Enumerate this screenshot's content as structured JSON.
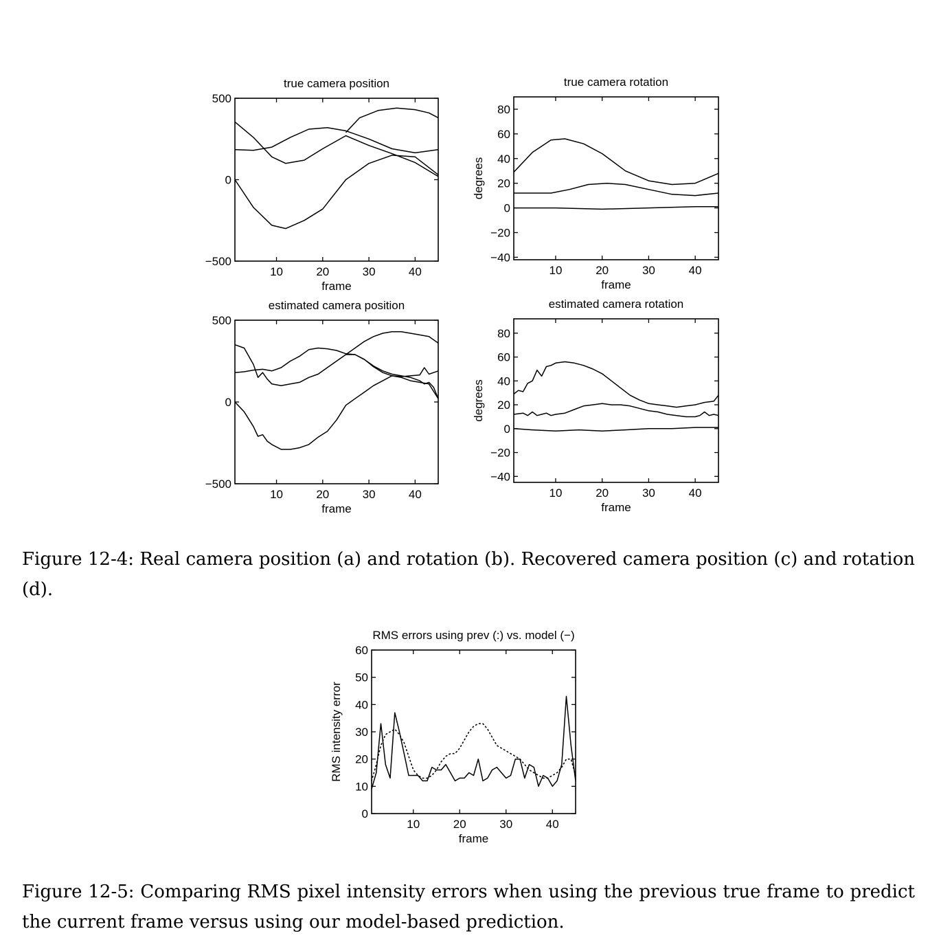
{
  "chart_data": [
    {
      "id": "a",
      "type": "line",
      "title": "true camera position",
      "xlabel": "frame",
      "ylabel": "",
      "xlim": [
        1,
        45
      ],
      "ylim": [
        -500,
        500
      ],
      "xticks": [
        10,
        20,
        30,
        40
      ],
      "yticks": [
        500,
        0,
        -500
      ],
      "series": [
        {
          "x": [
            1,
            5,
            9,
            12,
            16,
            20,
            25,
            30,
            35,
            40,
            45
          ],
          "values": [
            355,
            260,
            140,
            100,
            120,
            190,
            270,
            210,
            160,
            105,
            20
          ]
        },
        {
          "x": [
            1,
            5,
            9,
            13,
            17,
            21,
            25,
            30,
            35,
            40,
            45
          ],
          "values": [
            185,
            180,
            200,
            260,
            310,
            320,
            300,
            250,
            190,
            165,
            185
          ]
        },
        {
          "x": [
            1,
            5,
            9,
            12,
            16,
            20,
            25,
            30,
            35,
            40,
            45
          ],
          "values": [
            0,
            -170,
            -280,
            -300,
            -250,
            -180,
            0,
            100,
            150,
            140,
            30
          ]
        },
        {
          "x": [
            25,
            28,
            32,
            36,
            40,
            43,
            45
          ],
          "values": [
            290,
            380,
            425,
            440,
            430,
            410,
            380
          ]
        }
      ]
    },
    {
      "id": "b",
      "type": "line",
      "title": "true camera rotation",
      "xlabel": "frame",
      "ylabel": "degrees",
      "xlim": [
        1,
        45
      ],
      "ylim": [
        -42,
        90
      ],
      "xticks": [
        10,
        20,
        30,
        40
      ],
      "yticks": [
        80,
        60,
        40,
        20,
        0,
        -20,
        -40
      ],
      "series": [
        {
          "x": [
            1,
            5,
            9,
            12,
            16,
            20,
            25,
            30,
            35,
            40,
            45
          ],
          "values": [
            29,
            45,
            55,
            56,
            52,
            44,
            30,
            22,
            19,
            20,
            28
          ]
        },
        {
          "x": [
            1,
            5,
            9,
            13,
            17,
            21,
            25,
            30,
            35,
            40,
            45
          ],
          "values": [
            12,
            12,
            12,
            15,
            19,
            20,
            19,
            15,
            11,
            10,
            12
          ]
        },
        {
          "x": [
            1,
            10,
            20,
            30,
            40,
            45
          ],
          "values": [
            0,
            0,
            -1,
            0,
            1,
            1
          ]
        }
      ]
    },
    {
      "id": "c",
      "type": "line",
      "title": "estimated camera position",
      "xlabel": "frame",
      "ylabel": "",
      "xlim": [
        1,
        45
      ],
      "ylim": [
        -500,
        500
      ],
      "xticks": [
        10,
        20,
        30,
        40
      ],
      "yticks": [
        500,
        0,
        -500
      ],
      "series": [
        {
          "x": [
            1,
            3,
            5,
            6,
            7,
            8,
            9,
            11,
            13,
            15,
            17,
            19,
            21,
            23,
            25,
            27,
            29,
            31,
            33,
            35,
            37,
            39,
            41,
            42,
            43,
            44,
            45
          ],
          "values": [
            350,
            330,
            230,
            150,
            180,
            140,
            110,
            100,
            110,
            120,
            150,
            170,
            210,
            250,
            290,
            290,
            260,
            220,
            190,
            170,
            160,
            150,
            130,
            110,
            120,
            90,
            20
          ]
        },
        {
          "x": [
            1,
            3,
            5,
            7,
            9,
            11,
            13,
            15,
            17,
            19,
            21,
            23,
            25,
            27,
            29,
            31,
            33,
            35,
            37,
            39,
            41,
            42,
            43,
            44,
            45
          ],
          "values": [
            180,
            185,
            195,
            200,
            190,
            210,
            250,
            280,
            320,
            330,
            325,
            315,
            295,
            290,
            260,
            215,
            180,
            160,
            155,
            160,
            165,
            210,
            170,
            180,
            190
          ]
        },
        {
          "x": [
            1,
            3,
            5,
            6,
            7,
            8,
            9,
            11,
            13,
            15,
            17,
            19,
            21,
            23,
            25,
            27,
            29,
            31,
            33,
            35,
            37,
            39,
            41,
            43,
            45
          ],
          "values": [
            0,
            -60,
            -150,
            -210,
            -200,
            -240,
            -260,
            -290,
            -290,
            -280,
            -260,
            -215,
            -180,
            -110,
            -20,
            20,
            60,
            100,
            130,
            160,
            150,
            130,
            120,
            110,
            20
          ]
        },
        {
          "x": [
            25,
            27,
            29,
            31,
            33,
            35,
            37,
            39,
            41,
            43,
            45
          ],
          "values": [
            290,
            330,
            370,
            400,
            420,
            430,
            430,
            420,
            410,
            400,
            360
          ]
        }
      ]
    },
    {
      "id": "d",
      "type": "line",
      "title": "estimated camera rotation",
      "xlabel": "frame",
      "ylabel": "degrees",
      "xlim": [
        1,
        45
      ],
      "ylim": [
        -45,
        92
      ],
      "xticks": [
        10,
        20,
        30,
        40
      ],
      "yticks": [
        80,
        60,
        40,
        20,
        0,
        -20,
        -40
      ],
      "series": [
        {
          "x": [
            1,
            2,
            3,
            4,
            5,
            6,
            7,
            8,
            9,
            10,
            12,
            14,
            16,
            18,
            20,
            22,
            24,
            26,
            28,
            30,
            32,
            34,
            36,
            38,
            40,
            42,
            44,
            45
          ],
          "values": [
            29,
            32,
            31,
            38,
            40,
            49,
            44,
            52,
            53,
            55,
            56,
            55,
            53,
            50,
            46,
            40,
            34,
            28,
            24,
            21,
            20,
            19,
            18,
            19,
            20,
            22,
            23,
            28
          ]
        },
        {
          "x": [
            1,
            3,
            4,
            5,
            6,
            7,
            8,
            9,
            10,
            12,
            14,
            16,
            18,
            20,
            22,
            24,
            26,
            28,
            30,
            32,
            34,
            36,
            38,
            40,
            41,
            42,
            43,
            44,
            45
          ],
          "values": [
            12,
            13,
            11,
            14,
            11,
            12,
            13,
            11,
            12,
            13,
            16,
            19,
            20,
            21,
            20,
            20,
            19,
            17,
            15,
            14,
            12,
            11,
            10,
            10,
            11,
            14,
            11,
            12,
            11
          ]
        },
        {
          "x": [
            1,
            5,
            10,
            15,
            20,
            25,
            30,
            35,
            40,
            45
          ],
          "values": [
            0,
            -1,
            -2,
            -1,
            -2,
            -1,
            0,
            0,
            1,
            1
          ]
        }
      ]
    },
    {
      "id": "e",
      "type": "line",
      "title": "RMS errors using prev (:) vs. model (−)",
      "xlabel": "frame",
      "ylabel": "RMS intensity error",
      "xlim": [
        1,
        45
      ],
      "ylim": [
        0,
        60
      ],
      "xticks": [
        10,
        20,
        30,
        40
      ],
      "yticks": [
        60,
        50,
        40,
        30,
        20,
        10,
        0
      ],
      "series": [
        {
          "name": "model (−)",
          "style": "solid",
          "x": [
            1,
            2,
            3,
            4,
            5,
            6,
            7,
            8,
            9,
            10,
            11,
            12,
            13,
            14,
            15,
            16,
            17,
            18,
            19,
            20,
            21,
            22,
            23,
            24,
            25,
            26,
            27,
            28,
            29,
            30,
            31,
            32,
            33,
            34,
            35,
            36,
            37,
            38,
            39,
            40,
            41,
            42,
            43,
            44,
            45
          ],
          "values": [
            9,
            15,
            33,
            18,
            13,
            37,
            30,
            22,
            14,
            14,
            14,
            12,
            12,
            17,
            16,
            16,
            18,
            15,
            12,
            13,
            13,
            15,
            14,
            20,
            12,
            13,
            16,
            17,
            15,
            13,
            14,
            20,
            20,
            13,
            18,
            17,
            10,
            14,
            13,
            10,
            12,
            18,
            43,
            25,
            12
          ]
        },
        {
          "name": "prev (:)",
          "style": "dotted",
          "x": [
            1,
            2,
            3,
            4,
            5,
            6,
            7,
            8,
            9,
            10,
            11,
            12,
            13,
            14,
            15,
            16,
            17,
            18,
            19,
            20,
            21,
            22,
            23,
            24,
            25,
            26,
            27,
            28,
            29,
            30,
            31,
            32,
            33,
            34,
            35,
            36,
            37,
            38,
            39,
            40,
            41,
            42,
            43,
            44,
            45
          ],
          "values": [
            12,
            18,
            25,
            29,
            30,
            31,
            29,
            26,
            21,
            16,
            14,
            13,
            13,
            14,
            16,
            19,
            21,
            22,
            22,
            24,
            27,
            30,
            32,
            33,
            33,
            31,
            28,
            25,
            24,
            23,
            22,
            21,
            20,
            18,
            16,
            15,
            14,
            13,
            13,
            14,
            15,
            17,
            20,
            20,
            14
          ]
        }
      ]
    }
  ],
  "captions": {
    "fig12_4": "Figure 12-4: Real camera position (a) and rotation (b). Recovered camera position (c) and rotation (d).",
    "fig12_5": "Figure 12-5: Comparing RMS pixel intensity errors when using the previous true frame to predict the current frame versus using our model-based prediction."
  }
}
